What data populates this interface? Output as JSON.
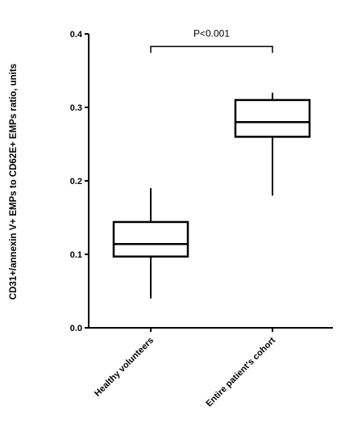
{
  "chart_data": {
    "type": "box",
    "title": "",
    "xlabel": "",
    "ylabel": "CD31+/annexin V+ EMPs to CD62E+ EMPs ratio, units",
    "ylim": [
      0,
      0.4
    ],
    "yticks": [
      "0.0",
      "0.1",
      "0.2",
      "0.3",
      "0.4"
    ],
    "ytick_values": [
      0,
      0.1,
      0.2,
      0.3,
      0.4
    ],
    "grid": false,
    "categories": [
      "Healthy volunteers",
      "Entire patient's cohort"
    ],
    "boxes": [
      {
        "category": "Healthy volunteers",
        "min": 0.04,
        "q1": 0.097,
        "median": 0.114,
        "q3": 0.144,
        "max": 0.19
      },
      {
        "category": "Entire patient's cohort",
        "min": 0.18,
        "q1": 0.26,
        "median": 0.28,
        "q3": 0.31,
        "max": 0.32
      }
    ],
    "annotations": [
      {
        "text": "P<0.001",
        "type": "significance-bracket",
        "between": [
          "Healthy volunteers",
          "Entire patient's cohort"
        ],
        "y": 0.383
      }
    ],
    "colors": {
      "box_fill": "#ffffff",
      "stroke": "#000000"
    }
  }
}
